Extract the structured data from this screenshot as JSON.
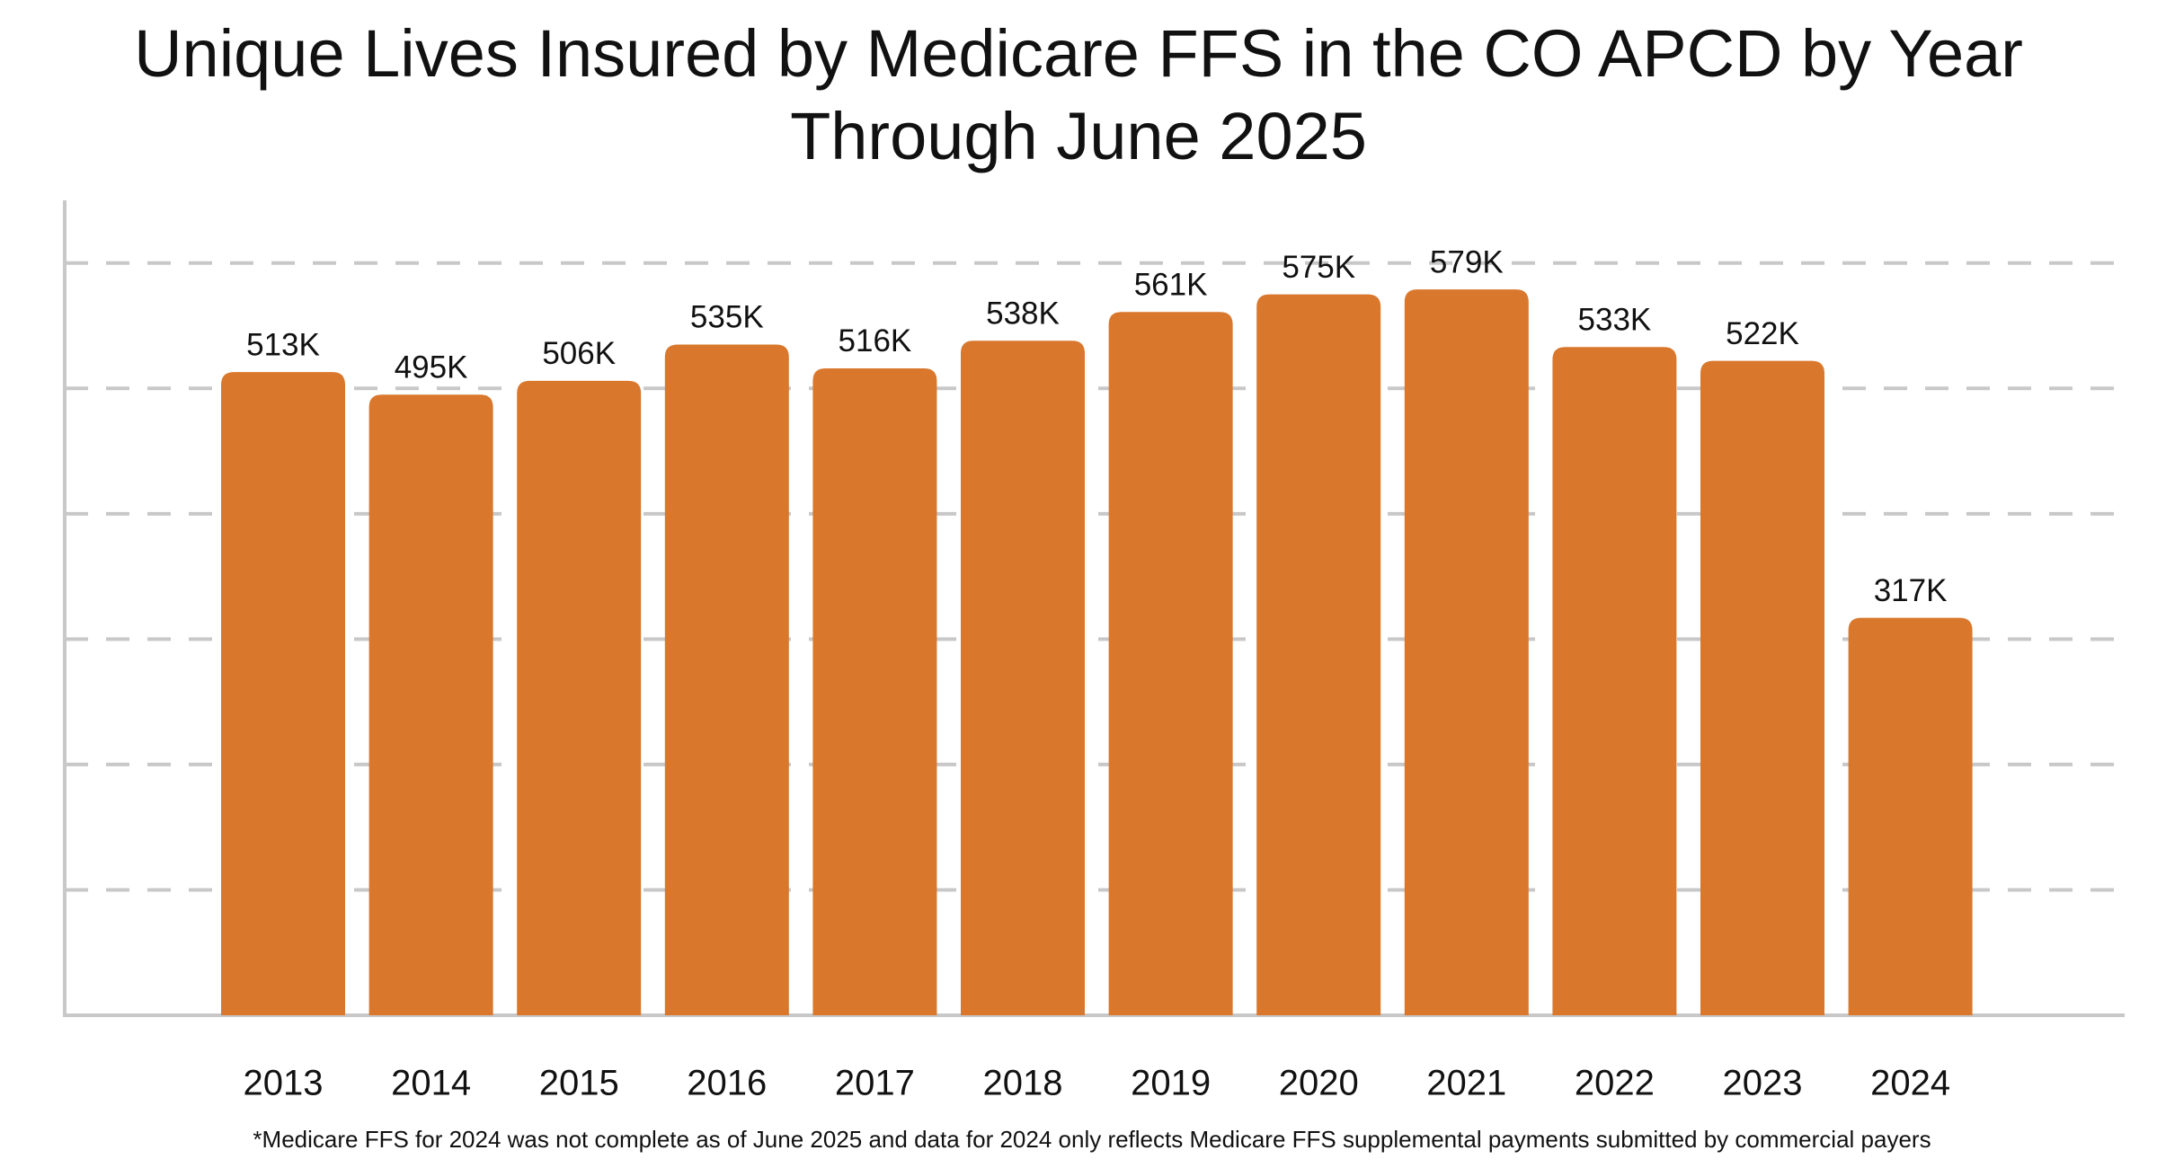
{
  "chart_data": {
    "type": "bar",
    "title": "Unique Lives Insured by Medicare FFS in the CO APCD by Year Through June 2025",
    "categories": [
      "2013",
      "2014",
      "2015",
      "2016",
      "2017",
      "2018",
      "2019",
      "2020",
      "2021",
      "2022",
      "2023",
      "2024"
    ],
    "values": [
      513000,
      495000,
      506000,
      535000,
      516000,
      538000,
      561000,
      575000,
      579000,
      533000,
      522000,
      317000
    ],
    "value_labels": [
      "513K",
      "495K",
      "506K",
      "535K",
      "516K",
      "538K",
      "561K",
      "575K",
      "579K",
      "533K",
      "522K",
      "317K"
    ],
    "color": "#d9782d",
    "ylim": [
      0,
      650000
    ],
    "yticks": [
      100000,
      200000,
      300000,
      400000,
      500000,
      600000
    ],
    "grid": true,
    "footnote": "*Medicare FFS for 2024 was not complete as of June 2025 and data for 2024 only reflects Medicare FFS supplemental payments submitted by commercial payers"
  }
}
